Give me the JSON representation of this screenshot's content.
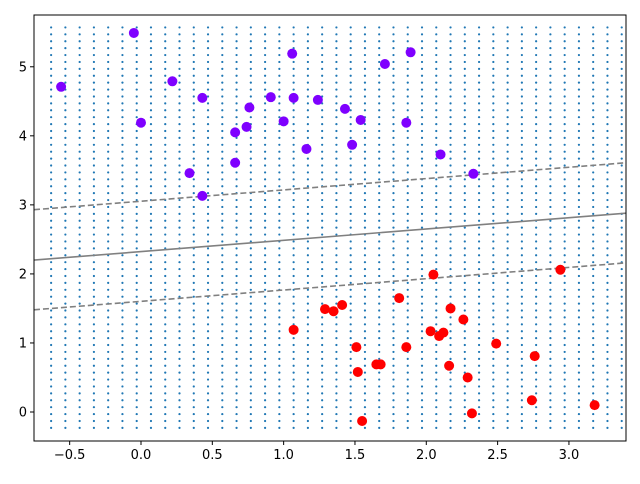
{
  "chart_data": {
    "type": "scatter",
    "title": "",
    "xlabel": "",
    "ylabel": "",
    "xlim": [
      -0.75,
      3.4
    ],
    "ylim": [
      -0.42,
      5.75
    ],
    "xticks": [
      -0.5,
      0.0,
      0.5,
      1.0,
      1.5,
      2.0,
      2.5,
      3.0
    ],
    "xtick_labels": [
      "−0.5",
      "0.0",
      "0.5",
      "1.0",
      "1.5",
      "2.0",
      "2.5",
      "3.0"
    ],
    "yticks": [
      0,
      1,
      2,
      3,
      4,
      5
    ],
    "ytick_labels": [
      "0",
      "1",
      "2",
      "3",
      "4",
      "5"
    ],
    "grid_dots": {
      "x_start": -0.63,
      "x_end": 3.33,
      "x_step": 0.1,
      "y_start": -0.23,
      "y_end": 5.57,
      "y_step": 0.1,
      "color": "#1f77b4"
    },
    "decision_boundary": {
      "color": "#808080",
      "x_range": [
        -0.75,
        3.4
      ],
      "center": {
        "y_at_xmin": 2.2,
        "y_at_xmax": 2.88
      },
      "upper_margin": {
        "y_at_xmin": 2.93,
        "y_at_xmax": 3.61
      },
      "lower_margin": {
        "y_at_xmin": 1.48,
        "y_at_xmax": 2.16
      }
    },
    "series": [
      {
        "color": "#7f00ff",
        "points": [
          [
            -0.56,
            4.71
          ],
          [
            -0.05,
            5.49
          ],
          [
            0.0,
            4.19
          ],
          [
            0.22,
            4.79
          ],
          [
            0.34,
            3.46
          ],
          [
            0.43,
            4.55
          ],
          [
            0.43,
            3.13
          ],
          [
            0.66,
            4.05
          ],
          [
            0.66,
            3.61
          ],
          [
            0.74,
            4.13
          ],
          [
            0.76,
            4.41
          ],
          [
            0.91,
            4.56
          ],
          [
            1.0,
            4.21
          ],
          [
            1.06,
            5.19
          ],
          [
            1.07,
            4.55
          ],
          [
            1.16,
            3.81
          ],
          [
            1.24,
            4.52
          ],
          [
            1.43,
            4.39
          ],
          [
            1.48,
            3.87
          ],
          [
            1.54,
            4.23
          ],
          [
            1.71,
            5.04
          ],
          [
            1.86,
            4.19
          ],
          [
            1.89,
            5.21
          ],
          [
            2.1,
            3.73
          ],
          [
            2.33,
            3.45
          ]
        ]
      },
      {
        "color": "#ff0000",
        "points": [
          [
            1.07,
            1.19
          ],
          [
            1.29,
            1.49
          ],
          [
            1.35,
            1.46
          ],
          [
            1.41,
            1.55
          ],
          [
            1.51,
            0.94
          ],
          [
            1.52,
            0.58
          ],
          [
            1.55,
            -0.13
          ],
          [
            1.65,
            0.69
          ],
          [
            1.68,
            0.69
          ],
          [
            1.81,
            1.65
          ],
          [
            1.86,
            0.94
          ],
          [
            2.03,
            1.17
          ],
          [
            2.05,
            1.99
          ],
          [
            2.09,
            1.1
          ],
          [
            2.12,
            1.15
          ],
          [
            2.16,
            0.67
          ],
          [
            2.17,
            1.5
          ],
          [
            2.26,
            1.34
          ],
          [
            2.29,
            0.5
          ],
          [
            2.32,
            -0.02
          ],
          [
            2.49,
            0.99
          ],
          [
            2.74,
            0.17
          ],
          [
            2.76,
            0.81
          ],
          [
            2.94,
            2.06
          ],
          [
            3.18,
            0.1
          ]
        ]
      }
    ]
  }
}
